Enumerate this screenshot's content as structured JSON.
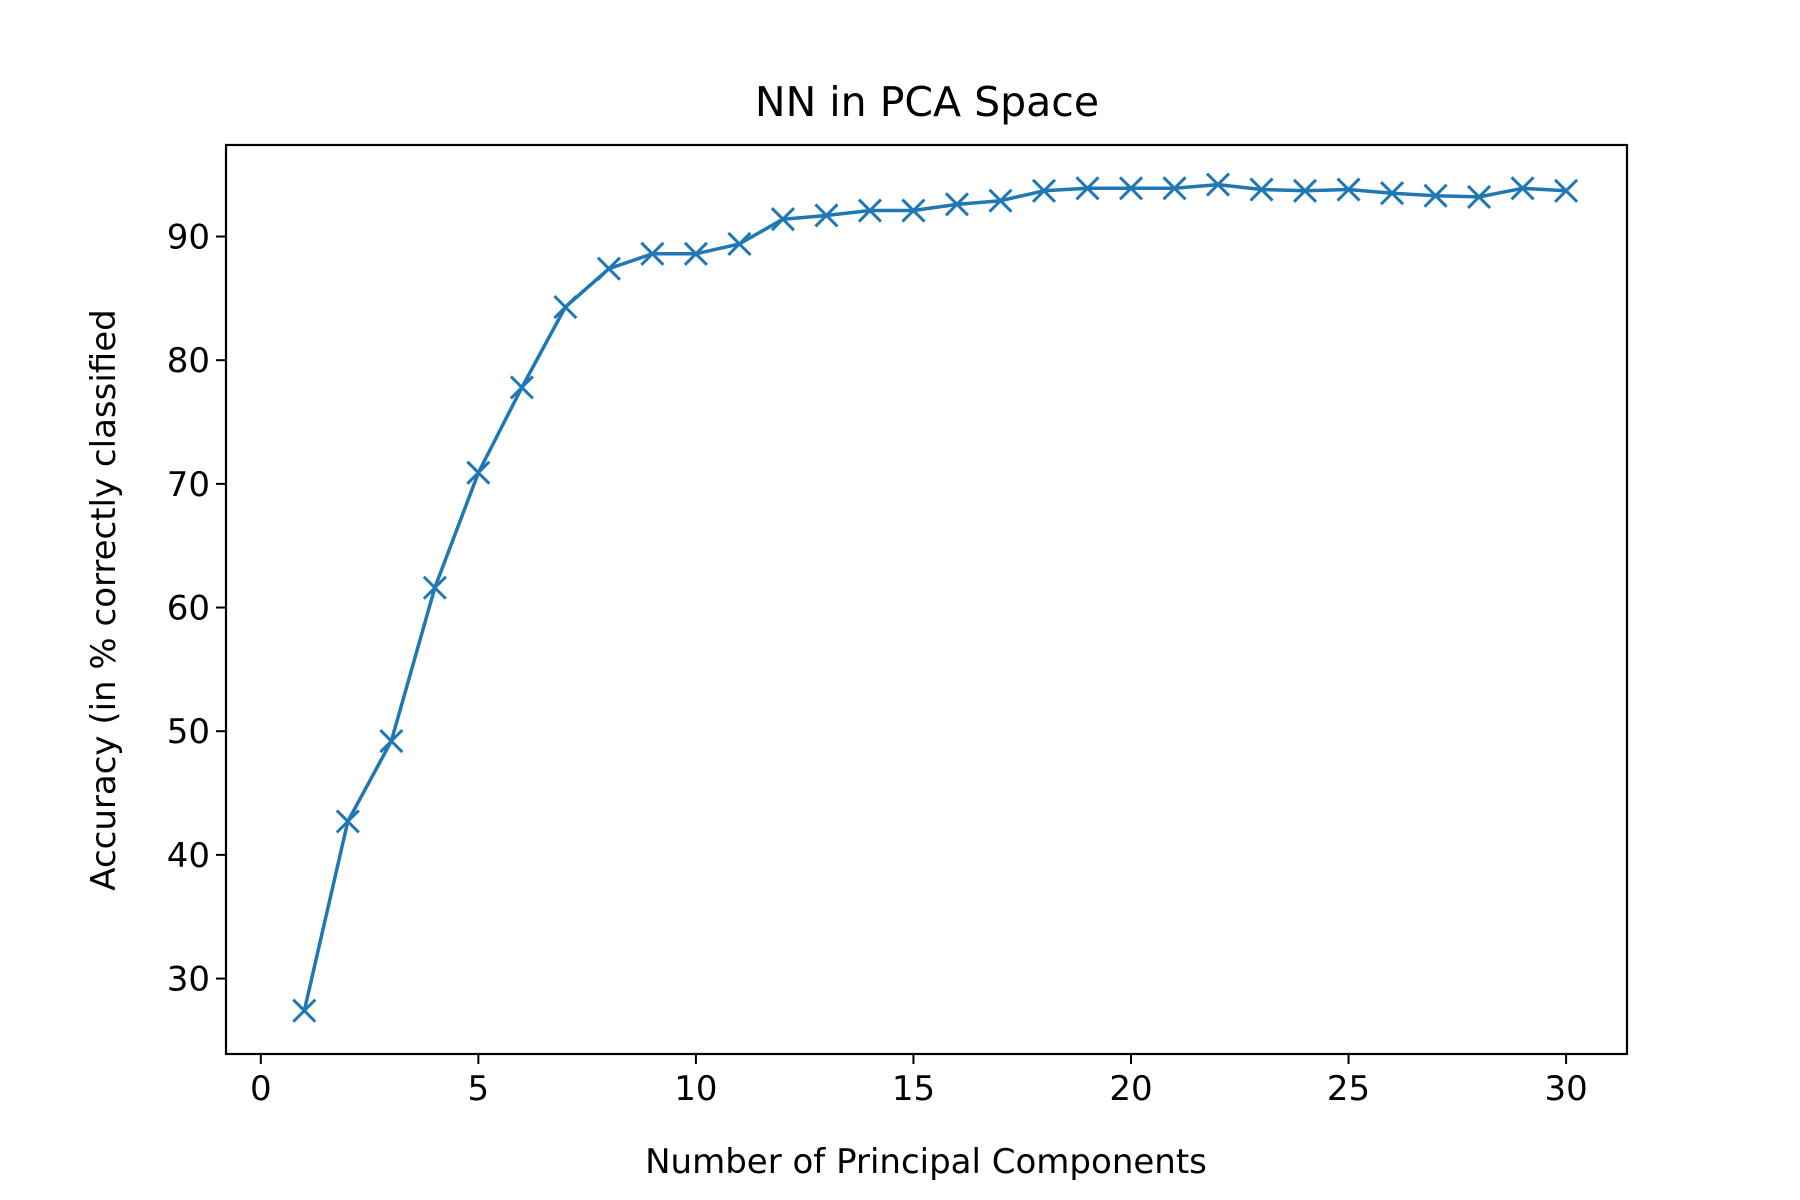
{
  "chart_data": {
    "type": "line",
    "title": "NN in PCA Space",
    "xlabel": "Number of Principal Components",
    "ylabel": "Accuracy (in % correctly classified",
    "xlim": [
      -0.8,
      31.4
    ],
    "ylim": [
      23.9,
      97.4
    ],
    "xticks": [
      0,
      5,
      10,
      15,
      20,
      25,
      30
    ],
    "yticks": [
      30,
      40,
      50,
      60,
      70,
      80,
      90
    ],
    "grid": false,
    "line_color": "#1f77b4",
    "marker": "x",
    "series": [
      {
        "x": [
          1,
          2,
          3,
          4,
          5,
          6,
          7,
          8,
          9,
          10,
          11,
          12,
          13,
          14,
          15,
          16,
          17,
          18,
          19,
          20,
          21,
          22,
          23,
          24,
          25,
          26,
          27,
          28,
          29,
          30
        ],
        "values": [
          27.4,
          42.7,
          49.2,
          61.6,
          70.9,
          77.8,
          84.3,
          87.4,
          88.6,
          88.6,
          89.4,
          91.4,
          91.7,
          92.1,
          92.1,
          92.6,
          92.9,
          93.7,
          93.9,
          93.9,
          93.9,
          94.2,
          93.8,
          93.7,
          93.8,
          93.5,
          93.3,
          93.2,
          93.9,
          93.7
        ]
      }
    ]
  }
}
